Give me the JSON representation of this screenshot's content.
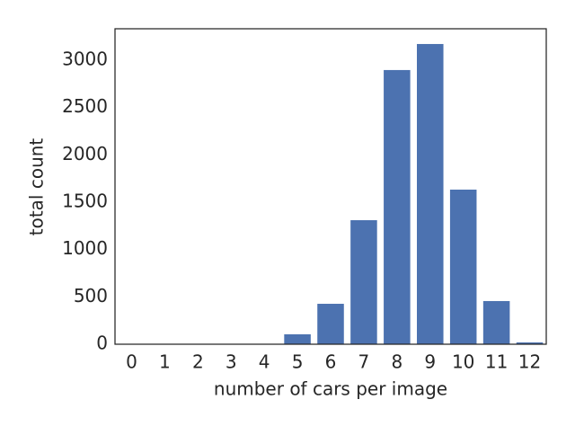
{
  "chart_data": {
    "type": "bar",
    "x_label": "number of cars per image",
    "y_label": "total count",
    "categories": [
      "0",
      "1",
      "2",
      "3",
      "4",
      "5",
      "6",
      "7",
      "8",
      "9",
      "10",
      "11",
      "12"
    ],
    "values": [
      0,
      0,
      0,
      0,
      0,
      105,
      427,
      1310,
      2896,
      3171,
      1633,
      456,
      19
    ],
    "color": "#4c72b0",
    "ylim": [
      0,
      3332
    ],
    "yticks": [
      0,
      500,
      1000,
      1500,
      2000,
      2500,
      3000
    ],
    "grid": false
  }
}
